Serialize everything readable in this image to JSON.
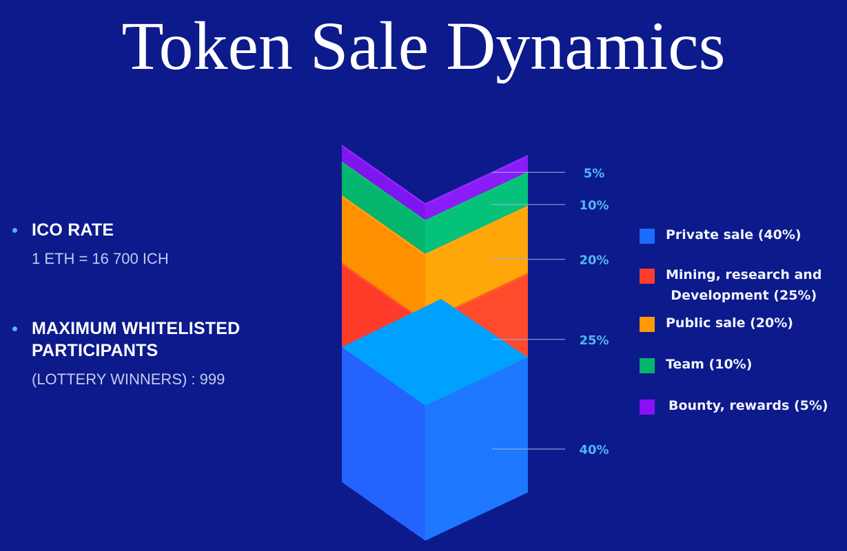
{
  "title": "Token Sale Dynamics",
  "info": {
    "ico_rate": {
      "heading": "ICO RATE",
      "value": "1 ETH = 16 700 ICH"
    },
    "whitelist": {
      "heading_line1": "MAXIMUM WHITELISTED",
      "heading_line2": "PARTICIPANTS",
      "value": "(LOTTERY WINNERS) : 999"
    }
  },
  "colors": {
    "background": "#0c1a8c",
    "bullet": "#4fb7f5",
    "percent_label": "#4fb7f5"
  },
  "chart_data": {
    "type": "stacked-3d-bar",
    "title": "Token Sale Dynamics",
    "unit": "%",
    "segments": [
      {
        "name": "Private sale (40%)",
        "value": 40,
        "label": "40%",
        "color": "#2563ff",
        "color_top": "#00a0ff",
        "color_right": "#1d78ff"
      },
      {
        "name": "Mining, research and Development (25%)",
        "value": 25,
        "label": "25%",
        "color": "#ff3b2a",
        "color_top": "#ff6a2a",
        "color_right": "#ff4a2c"
      },
      {
        "name": "Public sale (20%)",
        "value": 20,
        "label": "20%",
        "color": "#ff9100",
        "color_top": "#ffad20",
        "color_right": "#ffa608"
      },
      {
        "name": "Team (10%)",
        "value": 10,
        "label": "10%",
        "color": "#04b56d",
        "color_top": "#11c47a",
        "color_right": "#05c27a"
      },
      {
        "name": "Bounty, rewards (5%)",
        "value": 5,
        "label": "5%",
        "color": "#7f16f0",
        "color_top": "#9a2ef8",
        "color_right": "#8a1cf7"
      }
    ]
  },
  "legend": {
    "items": [
      {
        "line1": "Private sale (40%)",
        "line2": "",
        "color": "#1a6cff"
      },
      {
        "line1": "Mining, research and",
        "line2": "Development (25%)",
        "color": "#ff3d2b"
      },
      {
        "line1": "Public sale (20%)",
        "line2": "",
        "color": "#ff9a06"
      },
      {
        "line1": "Team (10%)",
        "line2": "",
        "color": "#07b46b"
      },
      {
        "line1": "Bounty, rewards (5%)",
        "line2": "",
        "color": "#8a10f7"
      }
    ]
  }
}
